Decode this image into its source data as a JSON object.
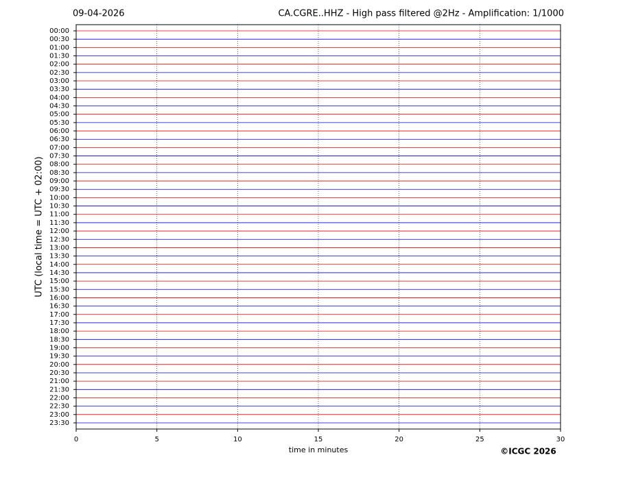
{
  "chart_data": {
    "type": "helicorder",
    "date": "09-04-2026",
    "title": "CA.CGRE..HHZ - High pass filtered @2Hz - Amplification: 1/1000",
    "y_label": "UTC (local time = UTC + 02:00)",
    "x_label": "time in minutes",
    "credit": "©ICGC 2026",
    "categories": [
      "00:00",
      "00:30",
      "01:00",
      "01:30",
      "02:00",
      "02:30",
      "03:00",
      "03:30",
      "04:00",
      "04:30",
      "05:00",
      "05:30",
      "06:00",
      "06:30",
      "07:00",
      "07:30",
      "08:00",
      "08:30",
      "09:00",
      "09:30",
      "10:00",
      "10:30",
      "11:00",
      "11:30",
      "12:00",
      "12:30",
      "13:00",
      "13:30",
      "14:00",
      "14:30",
      "15:00",
      "15:30",
      "16:00",
      "16:30",
      "17:00",
      "17:30",
      "18:00",
      "18:30",
      "19:00",
      "19:30",
      "20:00",
      "20:30",
      "21:00",
      "21:30",
      "22:00",
      "22:30",
      "23:00",
      "23:30"
    ],
    "xlim": [
      0,
      30
    ],
    "xticks": [
      0,
      5,
      10,
      15,
      20,
      25,
      30
    ],
    "trace_colors": [
      "#e00000",
      "#0000dd"
    ],
    "grid": true
  }
}
